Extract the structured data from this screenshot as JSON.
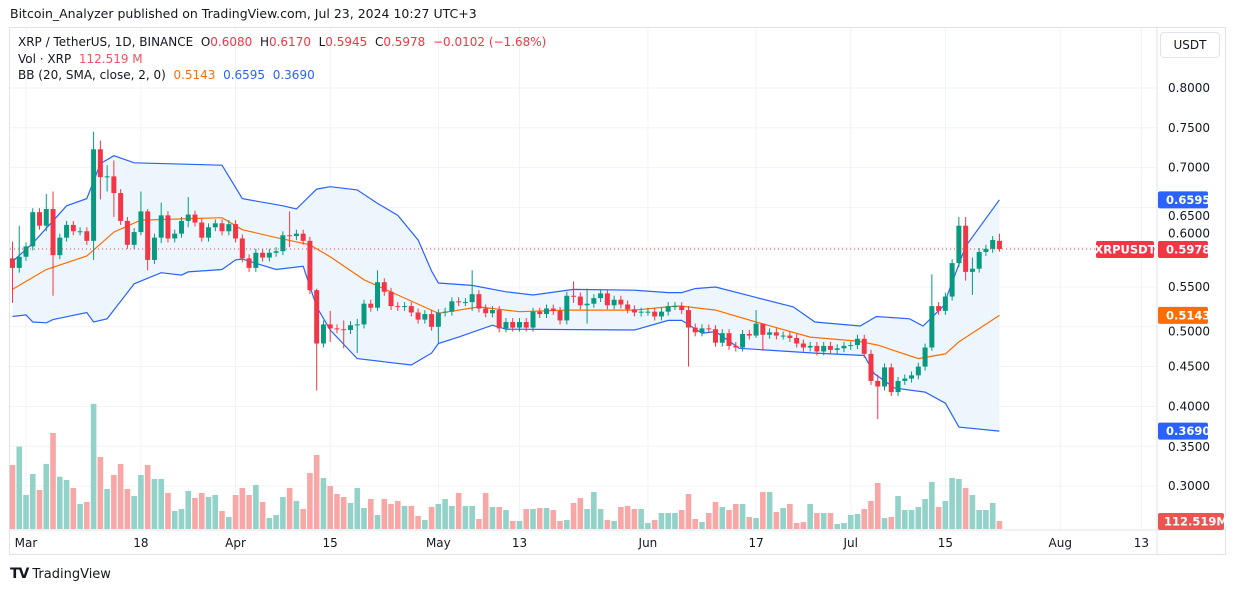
{
  "header": {
    "published": "Bitcoin_Analyzer published on TradingView.com, Jul 23, 2024 10:27 UTC+3"
  },
  "legend": {
    "symbol": "XRP / TetherUS, 1D, BINANCE",
    "o_label": "O",
    "o": "0.6080",
    "h_label": "H",
    "h": "0.6170",
    "l_label": "L",
    "l": "0.5945",
    "c_label": "C",
    "c": "0.5978",
    "change": "−0.0102 (−1.68%)",
    "vol_label": "Vol · XRP",
    "vol": "112.519 M",
    "bb_label": "BB (20, SMA, close, 2, 0)",
    "bb_mid": "0.5143",
    "bb_upper": "0.6595",
    "bb_lower": "0.3690"
  },
  "currency": "USDT",
  "footer": {
    "brand": "TradingView"
  },
  "colors": {
    "up": "#089981",
    "down": "#f23645",
    "vol_up": "#92d2c8",
    "vol_down": "#f7a8a6",
    "bb_band": "#2962ff",
    "bb_mid": "#ff6d00",
    "band_fill": "#eef6fd"
  },
  "chart_data": {
    "type": "candlestick",
    "symbol_tag": "XRPUSDT",
    "last_price": "0.5978",
    "last_volume": "112.519M",
    "price_ticks": [
      "0.8000",
      "0.7500",
      "0.7000",
      "0.6500",
      "0.6000",
      "0.5500",
      "0.5000",
      "0.4500",
      "0.4000",
      "0.3500",
      "0.3000"
    ],
    "price_tick_values": [
      0.8,
      0.75,
      0.7,
      0.65,
      0.6,
      0.55,
      0.5,
      0.45,
      0.4,
      0.35,
      0.3
    ],
    "badges": [
      {
        "label": "0.6595",
        "value": 0.6595,
        "color": "#2962ff"
      },
      {
        "label": "0.5143",
        "value": 0.5143,
        "color": "#ff6d00"
      },
      {
        "label": "0.3690",
        "value": 0.369,
        "color": "#2962ff"
      }
    ],
    "x_ticks": [
      {
        "label": "Mar",
        "day": 0
      },
      {
        "label": "18",
        "day": 17
      },
      {
        "label": "Apr",
        "day": 31
      },
      {
        "label": "15",
        "day": 45
      },
      {
        "label": "May",
        "day": 61
      },
      {
        "label": "13",
        "day": 73
      },
      {
        "label": "Jun",
        "day": 92
      },
      {
        "label": "17",
        "day": 108
      },
      {
        "label": "Jul",
        "day": 122
      },
      {
        "label": "15",
        "day": 136
      },
      {
        "label": "Aug",
        "day": 153
      },
      {
        "label": "13",
        "day": 165
      }
    ],
    "first_day": -2,
    "first_open": 0.586,
    "closes": [
      0.574,
      0.588,
      0.601,
      0.644,
      0.627,
      0.648,
      0.59,
      0.612,
      0.628,
      0.62,
      0.62,
      0.608,
      0.723,
      0.688,
      0.689,
      0.668,
      0.633,
      0.603,
      0.619,
      0.645,
      0.584,
      0.612,
      0.64,
      0.611,
      0.617,
      0.633,
      0.641,
      0.631,
      0.612,
      0.625,
      0.63,
      0.62,
      0.629,
      0.611,
      0.586,
      0.574,
      0.593,
      0.587,
      0.593,
      0.595,
      0.615,
      0.614,
      0.617,
      0.608,
      0.546,
      0.479,
      0.503,
      0.498,
      0.497,
      0.496,
      0.502,
      0.503,
      0.529,
      0.524,
      0.556,
      0.544,
      0.526,
      0.525,
      0.526,
      0.518,
      0.509,
      0.516,
      0.5,
      0.518,
      0.519,
      0.532,
      0.531,
      0.531,
      0.541,
      0.523,
      0.517,
      0.521,
      0.498,
      0.506,
      0.499,
      0.506,
      0.499,
      0.519,
      0.516,
      0.523,
      0.52,
      0.508,
      0.539,
      0.538,
      0.527,
      0.529,
      0.536,
      0.542,
      0.527,
      0.534,
      0.528,
      0.522,
      0.518,
      0.519,
      0.519,
      0.513,
      0.519,
      0.526,
      0.526,
      0.521,
      0.499,
      0.493,
      0.498,
      0.497,
      0.48,
      0.492,
      0.476,
      0.474,
      0.491,
      0.489,
      0.504,
      0.49,
      0.493,
      0.489,
      0.489,
      0.486,
      0.479,
      0.474,
      0.476,
      0.469,
      0.476,
      0.471,
      0.473,
      0.476,
      0.477,
      0.485,
      0.466,
      0.432,
      0.425,
      0.449,
      0.418,
      0.432,
      0.435,
      0.439,
      0.45,
      0.474,
      0.526,
      0.52,
      0.538,
      0.58,
      0.627,
      0.569,
      0.573,
      0.594,
      0.598,
      0.609,
      0.5978
    ],
    "wicks": {
      "0": [
        0.607,
        0.53
      ],
      "1": [
        0.627,
        0.568
      ],
      "5": [
        0.667,
        0.62
      ],
      "6": [
        0.67,
        0.539
      ],
      "12": [
        0.745,
        0.584
      ],
      "13": [
        0.734,
        0.66
      ],
      "14": [
        0.703,
        0.67
      ],
      "15": [
        0.709,
        0.638
      ],
      "19": [
        0.67,
        0.615
      ],
      "20": [
        0.648,
        0.571
      ],
      "22": [
        0.656,
        0.605
      ],
      "26": [
        0.663,
        0.625
      ],
      "41": [
        0.645,
        0.6
      ],
      "45": [
        0.548,
        0.42
      ],
      "47": [
        0.52,
        0.481
      ],
      "49": [
        0.508,
        0.473
      ],
      "51": [
        0.51,
        0.467
      ],
      "54": [
        0.571,
        0.52
      ],
      "63": [
        0.522,
        0.479
      ],
      "68": [
        0.571,
        0.52
      ],
      "83": [
        0.557,
        0.53
      ],
      "85": [
        0.548,
        0.504
      ],
      "100": [
        0.526,
        0.45
      ],
      "110": [
        0.521,
        0.486
      ],
      "111": [
        0.496,
        0.47
      ],
      "128": [
        0.44,
        0.384
      ],
      "136": [
        0.566,
        0.47
      ],
      "140": [
        0.638,
        0.575
      ],
      "141": [
        0.638,
        0.558
      ],
      "142": [
        0.587,
        0.54
      ],
      "146": [
        0.617,
        0.5945
      ]
    },
    "volume_m": [
      900,
      1158,
      478,
      774,
      549,
      915,
      1351,
      736,
      689,
      577,
      352,
      380,
      1759,
      1013,
      563,
      760,
      915,
      563,
      464,
      760,
      900,
      704,
      704,
      507,
      253,
      281,
      535,
      436,
      507,
      450,
      478,
      253,
      169,
      478,
      577,
      478,
      619,
      380,
      155,
      197,
      450,
      577,
      394,
      281,
      788,
      1041,
      718,
      605,
      492,
      450,
      366,
      577,
      295,
      422,
      197,
      422,
      352,
      394,
      324,
      324,
      183,
      127,
      310,
      352,
      422,
      324,
      507,
      324,
      324,
      141,
      507,
      310,
      310,
      267,
      113,
      113,
      281,
      281,
      295,
      295,
      267,
      113,
      127,
      366,
      436,
      281,
      521,
      281,
      127,
      113,
      310,
      324,
      281,
      281,
      84,
      127,
      225,
      225,
      225,
      267,
      492,
      141,
      98,
      225,
      380,
      310,
      267,
      352,
      352,
      169,
      155,
      521,
      521,
      239,
      295,
      352,
      84,
      98,
      352,
      225,
      225,
      225,
      70,
      84,
      197,
      211,
      281,
      394,
      647,
      155,
      169,
      464,
      267,
      267,
      310,
      422,
      661,
      310,
      394,
      718,
      704,
      577,
      478,
      267,
      267,
      366,
      113
    ],
    "bb_upper": [
      [
        1,
        0.582
      ],
      [
        4,
        0.605
      ],
      [
        9,
        0.652
      ],
      [
        12,
        0.661
      ],
      [
        14,
        0.705
      ],
      [
        16,
        0.715
      ],
      [
        19,
        0.706
      ],
      [
        32,
        0.703
      ],
      [
        35,
        0.661
      ],
      [
        41,
        0.652
      ],
      [
        43,
        0.648
      ],
      [
        46,
        0.673
      ],
      [
        48,
        0.676
      ],
      [
        52,
        0.672
      ],
      [
        55,
        0.655
      ],
      [
        58,
        0.64
      ],
      [
        61,
        0.609
      ],
      [
        63,
        0.57
      ],
      [
        64,
        0.555
      ],
      [
        69,
        0.552
      ],
      [
        74,
        0.544
      ],
      [
        78,
        0.54
      ],
      [
        84,
        0.547
      ],
      [
        93,
        0.546
      ],
      [
        98,
        0.543
      ],
      [
        100,
        0.543
      ],
      [
        102,
        0.548
      ],
      [
        105,
        0.55
      ],
      [
        110.5,
        0.538
      ],
      [
        116.5,
        0.525
      ],
      [
        119.7,
        0.506
      ],
      [
        126.4,
        0.501
      ],
      [
        128.8,
        0.513
      ],
      [
        133.7,
        0.51
      ],
      [
        135.7,
        0.501
      ],
      [
        138.7,
        0.526
      ],
      [
        142,
        0.601
      ],
      [
        147,
        0.6595
      ]
    ],
    "bb_middle": [
      [
        1,
        0.547
      ],
      [
        3,
        0.557
      ],
      [
        6,
        0.572
      ],
      [
        12,
        0.589
      ],
      [
        16,
        0.619
      ],
      [
        20,
        0.634
      ],
      [
        32,
        0.637
      ],
      [
        35,
        0.622
      ],
      [
        40,
        0.612
      ],
      [
        45,
        0.603
      ],
      [
        48,
        0.588
      ],
      [
        53,
        0.559
      ],
      [
        58,
        0.54
      ],
      [
        64,
        0.517
      ],
      [
        70,
        0.525
      ],
      [
        76,
        0.519
      ],
      [
        83,
        0.521
      ],
      [
        93,
        0.521
      ],
      [
        99,
        0.526
      ],
      [
        100,
        0.526
      ],
      [
        105,
        0.521
      ],
      [
        111,
        0.506
      ],
      [
        119,
        0.487
      ],
      [
        126,
        0.482
      ],
      [
        129,
        0.477
      ],
      [
        135,
        0.46
      ],
      [
        139,
        0.466
      ],
      [
        141,
        0.481
      ],
      [
        147,
        0.5143
      ]
    ],
    "bb_lower": [
      [
        1,
        0.513
      ],
      [
        3,
        0.515
      ],
      [
        4,
        0.506
      ],
      [
        6,
        0.505
      ],
      [
        7,
        0.509
      ],
      [
        12,
        0.518
      ],
      [
        13,
        0.506
      ],
      [
        15,
        0.51
      ],
      [
        19,
        0.554
      ],
      [
        23,
        0.568
      ],
      [
        26,
        0.565
      ],
      [
        27,
        0.569
      ],
      [
        32,
        0.572
      ],
      [
        34,
        0.584
      ],
      [
        35,
        0.585
      ],
      [
        40,
        0.572
      ],
      [
        44,
        0.576
      ],
      [
        46,
        0.525
      ],
      [
        48,
        0.496
      ],
      [
        52,
        0.46
      ],
      [
        56,
        0.456
      ],
      [
        60,
        0.452
      ],
      [
        63,
        0.467
      ],
      [
        64,
        0.479
      ],
      [
        67,
        0.487
      ],
      [
        72,
        0.502
      ],
      [
        74,
        0.497
      ],
      [
        93,
        0.496
      ],
      [
        98,
        0.508
      ],
      [
        100,
        0.508
      ],
      [
        103,
        0.492
      ],
      [
        105,
        0.494
      ],
      [
        108.5,
        0.473
      ],
      [
        119.7,
        0.467
      ],
      [
        127,
        0.464
      ],
      [
        128.5,
        0.441
      ],
      [
        131.5,
        0.423
      ],
      [
        136,
        0.418
      ],
      [
        139,
        0.404
      ],
      [
        141,
        0.374
      ],
      [
        147,
        0.369
      ]
    ]
  }
}
